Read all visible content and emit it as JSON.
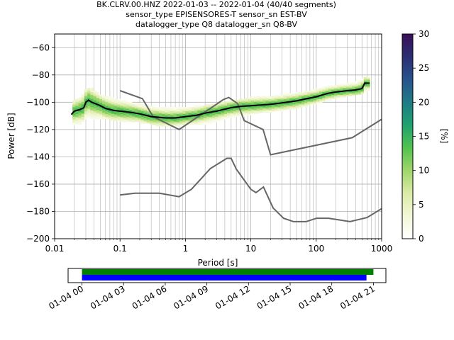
{
  "chart_data": [
    {
      "type": "heatmap",
      "chart_kind": "probabilistic power spectral density",
      "title_lines": [
        "BK.CLRV.00.HNZ   2022-01-03 -- 2022-01-04  (40/40 segments)",
        "sensor_type EPISENSORES-T sensor_sn EST-BV",
        "datalogger_type Q8 datalogger_sn Q8-BV"
      ],
      "xlabel": "Period [s]",
      "ylabel": "Power [dB]",
      "xscale": "log",
      "xlim": [
        0.01,
        1000
      ],
      "ylim": [
        -200,
        -50
      ],
      "x_tick_values": [
        0.01,
        0.1,
        1,
        10,
        100,
        1000
      ],
      "x_tick_labels": [
        "0.01",
        "0.1",
        "1",
        "10",
        "100",
        "1000"
      ],
      "y_tick_values": [
        -200,
        -180,
        -160,
        -140,
        -120,
        -100,
        -80,
        -60
      ],
      "y_tick_labels": [
        "−200",
        "−180",
        "−160",
        "−140",
        "−120",
        "−100",
        "−80",
        "−60"
      ],
      "grid": true,
      "colorbar": {
        "label": "[%]",
        "range": [
          0,
          30
        ],
        "tick_values": [
          0,
          5,
          10,
          15,
          20,
          25,
          30
        ],
        "tick_labels": [
          "0",
          "5",
          "10",
          "15",
          "20",
          "25",
          "30"
        ],
        "colormap": "pqlx",
        "stops": [
          "#ffffff",
          "#f3f7d6",
          "#dbeba7",
          "#9fd66a",
          "#52c24f",
          "#1fa16f",
          "#1e7a86",
          "#27538c",
          "#2b2e72",
          "#3a0f5a"
        ]
      },
      "mean_series": {
        "name": "mean",
        "color": "#000000",
        "x": [
          0.018,
          0.02,
          0.024,
          0.028,
          0.03,
          0.033,
          0.037,
          0.042,
          0.05,
          0.06,
          0.08,
          0.1,
          0.15,
          0.2,
          0.3,
          0.5,
          0.7,
          1,
          1.5,
          2,
          3,
          5,
          7,
          10,
          20,
          30,
          50,
          70,
          100,
          150,
          200,
          300,
          400,
          500,
          550,
          600,
          650
        ],
        "y": [
          -109,
          -106.5,
          -105.5,
          -104,
          -100,
          -98.5,
          -100,
          -101,
          -102.5,
          -104.5,
          -106,
          -106.5,
          -107.5,
          -108.5,
          -110.5,
          -111.5,
          -111.5,
          -110.5,
          -109.5,
          -108,
          -106.5,
          -104,
          -103,
          -102.5,
          -101.5,
          -100.5,
          -99,
          -97.5,
          -96,
          -93.5,
          -92.5,
          -91.5,
          -91,
          -90,
          -86,
          -86,
          -86
        ]
      },
      "distribution_bands": {
        "x": [
          0.018,
          0.025,
          0.03,
          0.035,
          0.05,
          0.1,
          0.2,
          0.5,
          1,
          2,
          5,
          10,
          20,
          50,
          100,
          200,
          400,
          500,
          650
        ],
        "upper": [
          -100,
          -96,
          -91,
          -89,
          -94,
          -98,
          -101,
          -104,
          -104,
          -102,
          -99,
          -96,
          -95,
          -93,
          -90,
          -87,
          -85,
          -82,
          -82
        ],
        "lower": [
          -117,
          -116,
          -113,
          -112,
          -112,
          -114,
          -115,
          -118,
          -117,
          -116,
          -112,
          -109,
          -107,
          -105,
          -101,
          -97,
          -95,
          -94,
          -92
        ]
      },
      "noise_models": [
        {
          "name": "NHNM",
          "color": "#666666",
          "x": [
            0.1,
            0.22,
            0.32,
            0.8,
            3.8,
            4.6,
            6.3,
            7.9,
            15.4,
            20,
            354.8,
            1000
          ],
          "y": [
            -91.5,
            -97.4,
            -110.5,
            -120,
            -98,
            -96.5,
            -101,
            -113.5,
            -120,
            -138.5,
            -126,
            -112.5
          ]
        },
        {
          "name": "NLNM",
          "color": "#666666",
          "x": [
            0.1,
            0.17,
            0.4,
            0.8,
            1.24,
            2.4,
            4.3,
            5,
            6,
            10,
            12,
            15.6,
            21.9,
            31.6,
            45,
            70,
            101,
            154,
            328,
            600,
            1000
          ],
          "y": [
            -168,
            -166.7,
            -166.7,
            -169.2,
            -163.7,
            -148.6,
            -141.1,
            -141.1,
            -149,
            -163.8,
            -166.2,
            -162.1,
            -177.5,
            -185,
            -187.5,
            -187.5,
            -185,
            -185,
            -187.5,
            -184.5,
            -178
          ]
        }
      ]
    },
    {
      "type": "timeline",
      "x_tick_labels": [
        "01-04 00",
        "01-04 03",
        "01-04 06",
        "01-04 09",
        "01-04 12",
        "01-04 15",
        "01-04 18",
        "01-04 21"
      ],
      "x_tick_hours": [
        0,
        3,
        6,
        9,
        12,
        15,
        18,
        21
      ],
      "xlim_hours": [
        -1,
        21.9
      ],
      "bars": [
        {
          "name": "data coverage",
          "color": "#008000",
          "start_hour": 0,
          "end_hour": 21
        },
        {
          "name": "used segments",
          "color": "#0000ff",
          "start_hour": 0,
          "end_hour": 20.5
        }
      ]
    }
  ]
}
